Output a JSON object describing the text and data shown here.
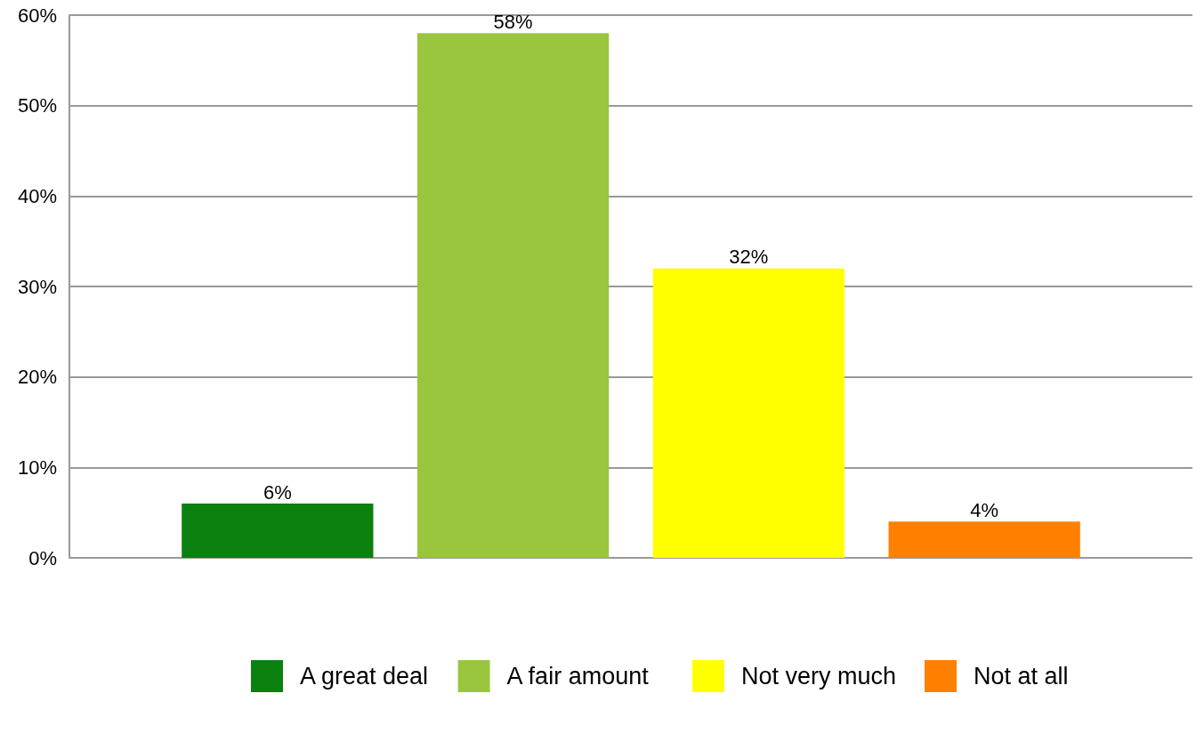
{
  "chart_data": {
    "type": "bar",
    "categories": [
      null
    ],
    "series": [
      {
        "name": "A great deal",
        "color": "#0a800f",
        "values": [
          6
        ],
        "value_labels": [
          "6%"
        ]
      },
      {
        "name": "A fair amount",
        "color": "#99c63c",
        "values": [
          58
        ],
        "value_labels": [
          "58%"
        ]
      },
      {
        "name": "Not very much",
        "color": "#ffff00",
        "values": [
          32
        ],
        "value_labels": [
          "32%"
        ]
      },
      {
        "name": "Not at all",
        "color": "#ff8000",
        "values": [
          4
        ],
        "value_labels": [
          "4%"
        ]
      }
    ],
    "ylim": [
      0,
      60
    ],
    "yticks": [
      {
        "value": 0,
        "label": "0%"
      },
      {
        "value": 10,
        "label": "10%"
      },
      {
        "value": 20,
        "label": "20%"
      },
      {
        "value": 30,
        "label": "30%"
      },
      {
        "value": 40,
        "label": "40%"
      },
      {
        "value": 50,
        "label": "50%"
      },
      {
        "value": 60,
        "label": "60%"
      }
    ],
    "grid": "y",
    "legend": "bottom"
  }
}
